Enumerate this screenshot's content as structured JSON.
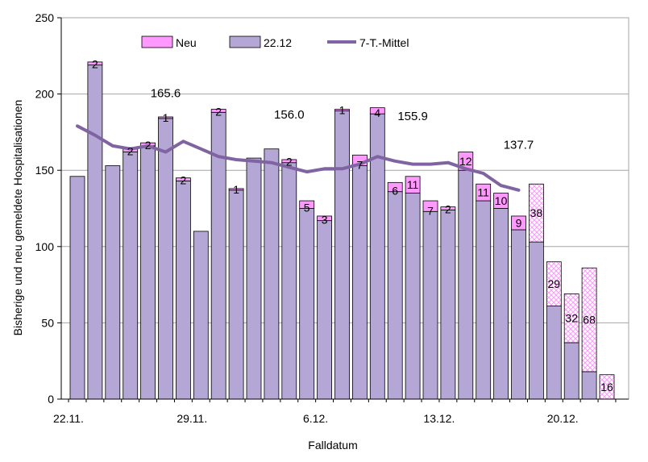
{
  "chart_data": {
    "type": "bar",
    "xlabel": "Falldatum",
    "ylabel": "Bisherige und neu gemeldete Hospitalisationen",
    "ylim": [
      0,
      250
    ],
    "yticks": [
      0,
      50,
      100,
      150,
      200,
      250
    ],
    "x_tick_labels": [
      {
        "index": 0,
        "label": "22.11."
      },
      {
        "index": 7,
        "label": "29.11."
      },
      {
        "index": 14,
        "label": "6.12."
      },
      {
        "index": 21,
        "label": "13.12."
      },
      {
        "index": 28,
        "label": "20.12."
      }
    ],
    "legend": {
      "position": "top",
      "entries": [
        {
          "key": "neu",
          "label": "Neu",
          "color": "#ff99ff"
        },
        {
          "key": "base",
          "label": "22.12",
          "color": "#b4a7d6"
        },
        {
          "key": "avg",
          "label": "7-T.-Mittel",
          "color": "#8064a2"
        }
      ]
    },
    "colors": {
      "base": "#b4a7d6",
      "neu": "#ff99ff",
      "avg": "#8064a2",
      "hatch": "#ff99ff",
      "grid": "#a6a6a6",
      "border": "#000000"
    },
    "series": [
      {
        "name": "22.12",
        "values": [
          146,
          219,
          153,
          162,
          166,
          184,
          143,
          110,
          188,
          137,
          158,
          164,
          155,
          125,
          117,
          189,
          153,
          187,
          136,
          135,
          123,
          124,
          150,
          130,
          125,
          111,
          103,
          61,
          37,
          18,
          0
        ]
      },
      {
        "name": "Neu",
        "values": [
          0,
          2,
          0,
          2,
          2,
          1,
          2,
          0,
          2,
          1,
          0,
          0,
          2,
          5,
          3,
          1,
          7,
          4,
          6,
          11,
          7,
          2,
          12,
          11,
          10,
          9,
          38,
          29,
          32,
          68,
          16
        ]
      }
    ],
    "new_labels": [
      "",
      "2",
      "",
      "2",
      "2",
      "1",
      "2",
      "",
      "2",
      "1",
      "",
      "",
      "2",
      "5",
      "3",
      "1",
      "7",
      "4",
      "6",
      "11",
      "7",
      "2",
      "12",
      "11",
      "10",
      "9",
      "38",
      "29",
      "32",
      "68",
      "16"
    ],
    "hatched_from_index": 26,
    "moving_average": {
      "name": "7-T.-Mittel",
      "start_index": 0,
      "values": [
        179,
        173,
        166,
        164,
        166,
        162,
        169,
        164,
        159,
        157,
        156,
        155,
        152,
        149,
        151,
        151,
        154,
        159,
        156,
        154,
        154,
        155,
        151,
        148,
        140,
        137
      ]
    },
    "annotations": [
      {
        "text": "165.6",
        "x_index": 5,
        "y_value": 198
      },
      {
        "text": "156.0",
        "x_index": 12,
        "y_value": 184
      },
      {
        "text": "155.9",
        "x_index": 19,
        "y_value": 183
      },
      {
        "text": "137.7",
        "x_index": 25,
        "y_value": 164
      }
    ]
  }
}
